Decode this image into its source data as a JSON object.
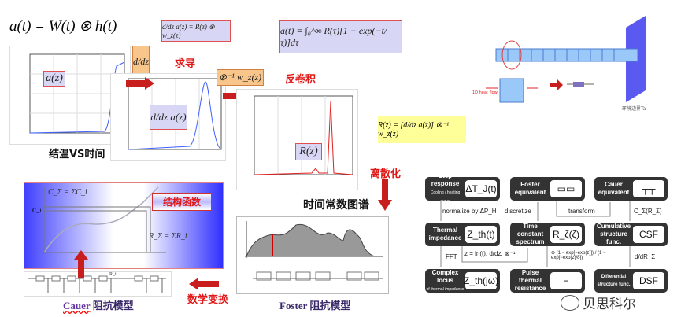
{
  "formulas": {
    "convolution": "a(t) = W(t) ⊗ h(t)",
    "derivative": "d/dz a(z) = R(z) ⊗ w_z(z)",
    "integral": "a(t) = ∫₀^∞ R(τ)[1 − exp(−t/τ)]dτ",
    "rz": "R(z) = [d/dz a(z)] ⊗⁻¹ w_z(z)",
    "dz": "d/dz",
    "deconv_op": "⊗⁻¹ w_z(z)",
    "az": "a(z)",
    "dz2": "d/dz a(z)",
    "Rz_label": "R(z)"
  },
  "labels": {
    "derive": "求导",
    "deconv": "反卷积",
    "junction_vs_time": "结温VS时间",
    "discretize": "离散化",
    "tc_spectrum": "时间常数图谱",
    "structure_function": "结构函数",
    "math_transform": "数学变换",
    "cauer": "Cauer",
    "cauer_suffix": " 阻抗模型",
    "foster": "Foster 阻抗模型",
    "cz": "C_Σ = ΣC_i",
    "rsum": "R_Σ = ΣR_i",
    "ci": "C_i",
    "ri": "R_i",
    "boundary": "环境边界Ta",
    "heatflow": "1D heat flow"
  },
  "flow": {
    "nodes": [
      {
        "label": "Step response",
        "sub": "Cooling / heating curve",
        "sym": "ΔT_J(t)"
      },
      {
        "label": "Foster equivalent",
        "sym": ""
      },
      {
        "label": "Cauer equivalent",
        "sym": ""
      },
      {
        "label": "Thermal impedance",
        "sym": "Z_th(t)"
      },
      {
        "label": "Time constant spectrum",
        "sym": "R_ζ(ζ)"
      },
      {
        "label": "Cumulative structure func.",
        "sym": "CSF"
      },
      {
        "label": "Complex locus",
        "sub": "of thermal impedance",
        "sym": "Z_th(jω)"
      },
      {
        "label": "Pulse thermal resistance",
        "sym": ""
      },
      {
        "label": "Differential structure func.",
        "sym": "DSF"
      }
    ],
    "edges": [
      "normalize by ΔP_H",
      "discretize",
      "transform",
      "C_Σ(R_Σ)",
      "FFT",
      "z = ln(t),  d/dz, ⊗⁻¹",
      "⊗ (1 − exp[−exp(z)]) / (1 − exp[−exp(z)/δ])",
      "d/dR_Σ"
    ]
  },
  "watermark": "贝思科尔",
  "colors": {
    "red": "#e01818",
    "lavender": "#d7d7f5",
    "orange": "#f8c58a",
    "yellow": "#ffff99",
    "node": "#333333",
    "blue": "#2a2ae8"
  }
}
